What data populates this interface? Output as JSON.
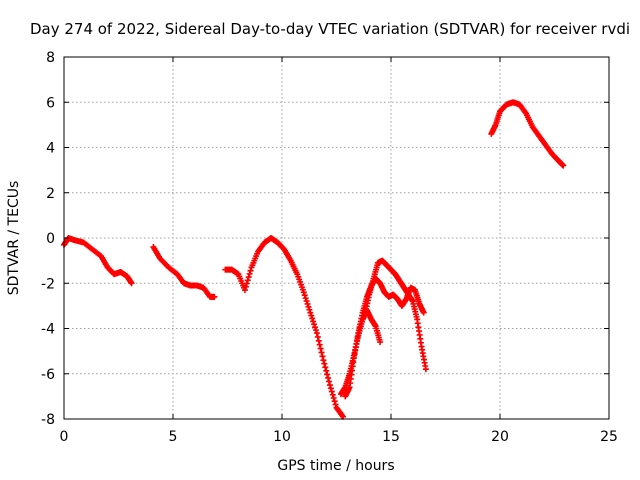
{
  "chart_data": {
    "type": "scatter",
    "title": "Day 274 of 2022, Sidereal Day-to-day VTEC variation (SDTVAR) for receiver rvdi",
    "xlabel": "GPS time / hours",
    "ylabel": "SDTVAR / TECUs",
    "xlim": [
      0,
      25
    ],
    "ylim": [
      -8,
      8
    ],
    "xticks": [
      "0",
      "5",
      "10",
      "15",
      "20",
      "25"
    ],
    "yticks": [
      "-8",
      "-6",
      "-4",
      "-2",
      "0",
      "2",
      "4",
      "6",
      "8"
    ],
    "grid": true,
    "marker": "+",
    "series_color": "#ff0000",
    "series": [
      {
        "name": "arc-1",
        "x": [
          0.0,
          0.2,
          0.5,
          0.9,
          1.3,
          1.7,
          2.0,
          2.3,
          2.6,
          2.9,
          3.1
        ],
        "y": [
          -0.3,
          0.0,
          -0.1,
          -0.2,
          -0.5,
          -0.8,
          -1.3,
          -1.6,
          -1.5,
          -1.7,
          -2.0
        ]
      },
      {
        "name": "arc-2",
        "x": [
          4.1,
          4.4,
          4.8,
          5.2,
          5.5,
          5.8,
          6.1,
          6.4,
          6.7,
          6.9
        ],
        "y": [
          -0.4,
          -0.9,
          -1.3,
          -1.6,
          -2.0,
          -2.1,
          -2.1,
          -2.2,
          -2.6,
          -2.6
        ]
      },
      {
        "name": "arc-3",
        "x": [
          7.4,
          7.7,
          8.0,
          8.3,
          8.6,
          8.9,
          9.2,
          9.5,
          9.8,
          10.1,
          10.4,
          10.7,
          11.0,
          11.3,
          11.6,
          11.9,
          12.2,
          12.5,
          12.8
        ],
        "y": [
          -1.4,
          -1.4,
          -1.6,
          -2.3,
          -1.3,
          -0.6,
          -0.2,
          0.0,
          -0.2,
          -0.5,
          -1.0,
          -1.6,
          -2.4,
          -3.3,
          -4.2,
          -5.4,
          -6.5,
          -7.5,
          -7.9
        ]
      },
      {
        "name": "arc-4",
        "x": [
          12.7,
          12.9,
          13.1,
          13.3,
          13.5,
          13.7,
          13.9,
          14.1,
          14.3,
          14.5
        ],
        "y": [
          -6.9,
          -6.6,
          -6.0,
          -5.2,
          -4.3,
          -3.6,
          -3.2,
          -3.6,
          -3.9,
          -4.6
        ]
      },
      {
        "name": "arc-5",
        "x": [
          12.9,
          13.1,
          13.3,
          13.5,
          13.7,
          13.9,
          14.1,
          14.3,
          14.5,
          14.7,
          14.9,
          15.1,
          15.3,
          15.5,
          15.7,
          15.9,
          16.1,
          16.3,
          16.5
        ],
        "y": [
          -7.0,
          -6.6,
          -5.3,
          -4.2,
          -3.3,
          -2.6,
          -2.1,
          -1.8,
          -2.0,
          -2.4,
          -2.6,
          -2.5,
          -2.7,
          -3.0,
          -2.7,
          -2.2,
          -2.3,
          -2.9,
          -3.3
        ]
      },
      {
        "name": "arc-6",
        "x": [
          13.8,
          14.0,
          14.2,
          14.4,
          14.6,
          14.8,
          15.0,
          15.2,
          15.4,
          15.6,
          15.8,
          16.0,
          16.2,
          16.4,
          16.6
        ],
        "y": [
          -3.4,
          -2.5,
          -1.8,
          -1.1,
          -1.0,
          -1.2,
          -1.4,
          -1.6,
          -1.9,
          -2.2,
          -2.5,
          -2.8,
          -3.6,
          -4.8,
          -5.8
        ]
      },
      {
        "name": "arc-7",
        "x": [
          19.6,
          19.8,
          20.0,
          20.3,
          20.6,
          20.9,
          21.2,
          21.5,
          21.8,
          22.1,
          22.4,
          22.7,
          22.9
        ],
        "y": [
          4.6,
          5.0,
          5.6,
          5.9,
          6.0,
          5.9,
          5.5,
          4.9,
          4.5,
          4.1,
          3.7,
          3.4,
          3.2
        ]
      }
    ]
  }
}
